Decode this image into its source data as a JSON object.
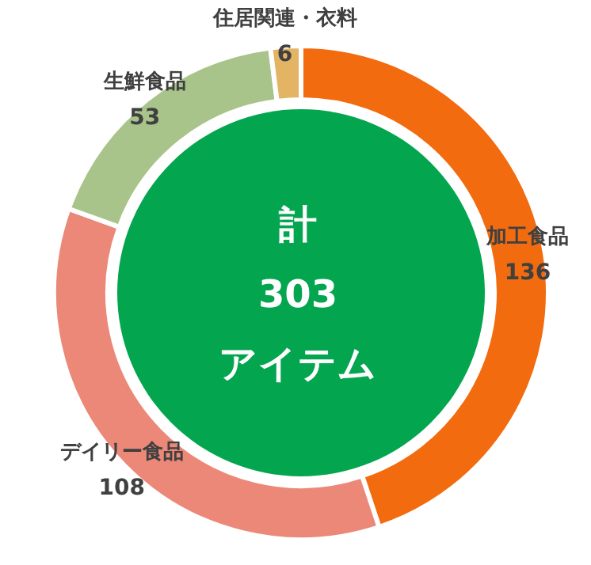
{
  "chart_data": {
    "type": "donut",
    "categories": [
      "加工食品",
      "デイリー食品",
      "生鮮食品",
      "住居関連・衣料"
    ],
    "values": [
      136,
      108,
      53,
      6
    ],
    "colors": [
      "#f26b0f",
      "#ec8878",
      "#a8c48a",
      "#e2b463"
    ],
    "data_labels": true,
    "annotations": [
      "計",
      "303",
      "アイテム"
    ]
  }
}
